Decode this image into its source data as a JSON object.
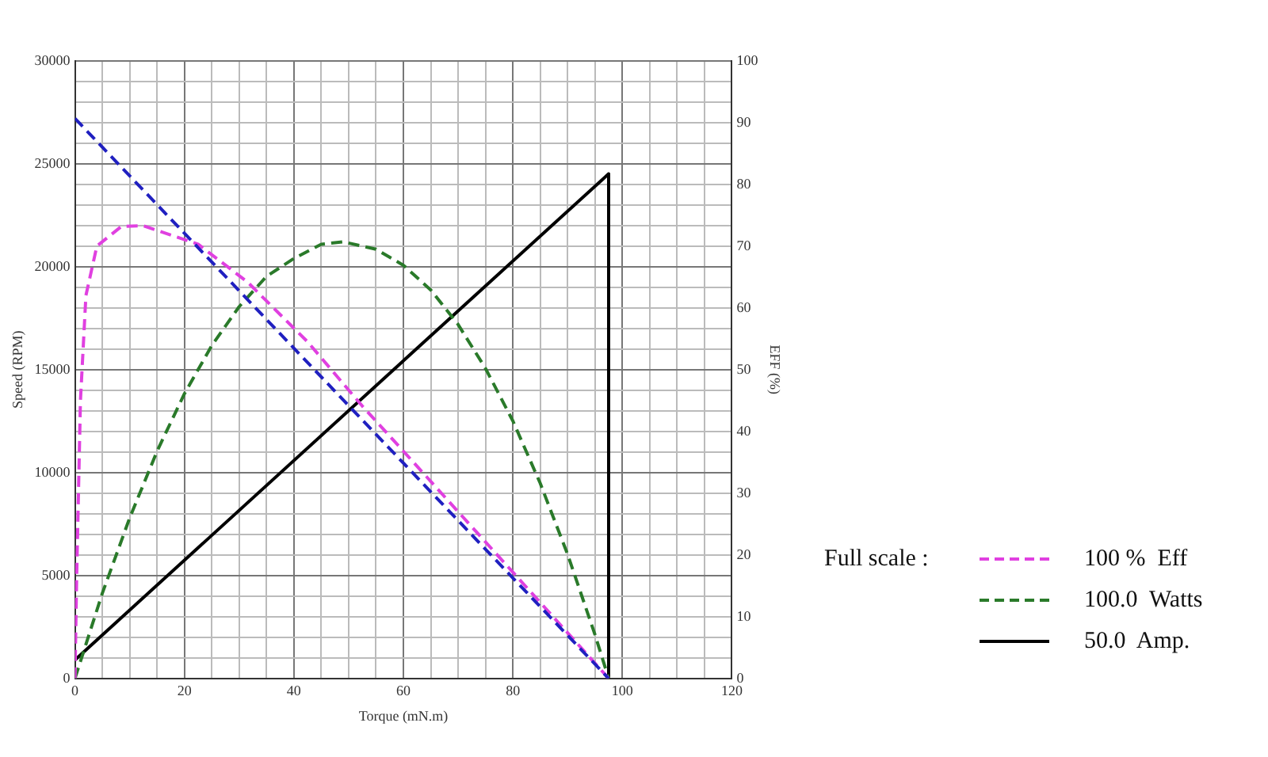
{
  "chart_data": {
    "type": "line",
    "xlabel": "Torque (mN.m)",
    "ylabel": "Speed (RPM)",
    "y2label": "EFF (%)",
    "legend_title": "Full scale :",
    "xlim": [
      0,
      120
    ],
    "xticks": [
      0,
      {
        "value": 5,
        "label": null
      },
      {
        "value": 10,
        "label": null
      },
      {
        "value": 15,
        "label": null
      },
      20,
      {
        "value": 25,
        "label": null
      },
      {
        "value": 30,
        "label": null
      },
      {
        "value": 35,
        "label": null
      },
      40,
      {
        "value": 45,
        "label": null
      },
      {
        "value": 50,
        "label": null
      },
      {
        "value": 55,
        "label": null
      },
      60,
      {
        "value": 65,
        "label": null
      },
      {
        "value": 70,
        "label": null
      },
      {
        "value": 75,
        "label": null
      },
      80,
      {
        "value": 85,
        "label": null
      },
      {
        "value": 90,
        "label": null
      },
      {
        "value": 95,
        "label": null
      },
      100,
      {
        "value": 105,
        "label": null
      },
      {
        "value": 110,
        "label": null
      },
      {
        "value": 115,
        "label": null
      },
      120
    ],
    "ylim": [
      0,
      30000
    ],
    "yticks": [
      0,
      {
        "value": 1000,
        "label": null
      },
      {
        "value": 2000,
        "label": null
      },
      {
        "value": 3000,
        "label": null
      },
      {
        "value": 4000,
        "label": null
      },
      5000,
      {
        "value": 6000,
        "label": null
      },
      {
        "value": 7000,
        "label": null
      },
      {
        "value": 8000,
        "label": null
      },
      {
        "value": 9000,
        "label": null
      },
      10000,
      {
        "value": 11000,
        "label": null
      },
      {
        "value": 12000,
        "label": null
      },
      {
        "value": 13000,
        "label": null
      },
      {
        "value": 14000,
        "label": null
      },
      15000,
      {
        "value": 16000,
        "label": null
      },
      {
        "value": 17000,
        "label": null
      },
      {
        "value": 18000,
        "label": null
      },
      {
        "value": 19000,
        "label": null
      },
      20000,
      {
        "value": 21000,
        "label": null
      },
      {
        "value": 22000,
        "label": null
      },
      {
        "value": 23000,
        "label": null
      },
      {
        "value": 24000,
        "label": null
      },
      25000,
      {
        "value": 26000,
        "label": null
      },
      {
        "value": 27000,
        "label": null
      },
      {
        "value": 28000,
        "label": null
      },
      {
        "value": 29000,
        "label": null
      },
      30000
    ],
    "y2lim": [
      0,
      100
    ],
    "y2ticks": [
      0,
      10,
      20,
      30,
      40,
      50,
      60,
      70,
      80,
      90,
      100
    ],
    "grid": true,
    "legend": "bottom right",
    "marker": "none",
    "series": [
      {
        "color": "#2020c0",
        "line_style": "dashed",
        "x": [
          0,
          97.5
        ],
        "values": [
          27200,
          0
        ]
      },
      {
        "name": "100 %  Eff",
        "color": "#e040e0",
        "line_style": "dashed",
        "axis": "y2",
        "x": [
          0,
          0.3,
          1,
          2,
          4,
          8.5,
          12.5,
          22.5,
          31.5,
          42.5,
          52.5,
          60,
          70,
          80,
          90,
          97.5
        ],
        "values": [
          0,
          16,
          45,
          62,
          70,
          73.2,
          73.3,
          70.3,
          64.2,
          54.5,
          44.1,
          36.8,
          27,
          17.2,
          7.4,
          0
        ]
      },
      {
        "name": "100.0  Watts",
        "color": "#2a7a2a",
        "line_style": "dashed",
        "axis": "y2",
        "x": [
          0,
          5,
          10,
          15,
          20,
          25,
          30,
          35,
          40,
          45,
          49,
          55,
          60,
          65,
          70,
          75,
          80,
          85,
          90,
          95,
          97.5
        ],
        "values": [
          0,
          13.8,
          26,
          36.8,
          46.1,
          53.9,
          60.2,
          65.1,
          68,
          70.3,
          70.7,
          69.5,
          66.9,
          62.9,
          57.3,
          50.2,
          41.7,
          31.6,
          20.1,
          7.1,
          0
        ]
      },
      {
        "name": "50.0  Amp.",
        "color": "#000000",
        "line_style": "solid",
        "axis": "y2",
        "x": [
          0,
          97.5,
          97.5
        ],
        "values": [
          3,
          81.7,
          0
        ]
      }
    ]
  }
}
